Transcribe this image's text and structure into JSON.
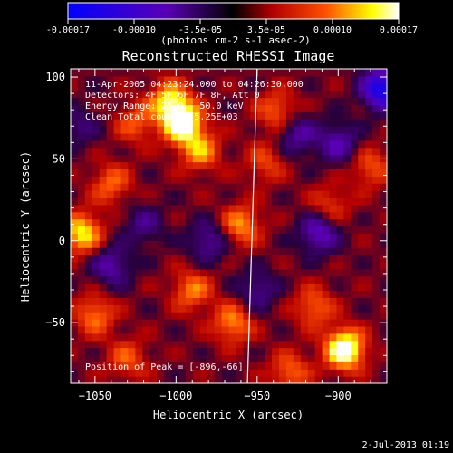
{
  "colorbar": {
    "colors": [
      "#0000ff",
      "#5a00b4",
      "#000000",
      "#b40000",
      "#ff5000",
      "#ffff00",
      "#ffffff"
    ],
    "tick_labels": [
      "-0.00017",
      "-0.00010",
      "-3.5e-05",
      "3.5e-05",
      "0.00010",
      "0.00017"
    ],
    "unit_label": "(photons cm-2 s-1 asec-2)"
  },
  "chart_data": {
    "type": "heatmap",
    "title": "Reconstructed RHESSI Image",
    "xlabel": "Heliocentric X (arcsec)",
    "ylabel": "Heliocentric Y (arcsec)",
    "xlim": [
      -1065,
      -870
    ],
    "ylim": [
      -87,
      105
    ],
    "x_ticks": [
      -1050,
      -1000,
      -950,
      -900
    ],
    "x_tick_labels": [
      "−1050",
      "−1000",
      "−950",
      "−900"
    ],
    "y_ticks": [
      100,
      50,
      0,
      -50
    ],
    "y_tick_labels": [
      "100",
      "50",
      "0",
      "−50"
    ],
    "colorbar_range": [
      -0.00017,
      0.00017
    ],
    "limb_line": [
      [
        -956,
        -87
      ],
      [
        -950,
        105
      ]
    ],
    "peak_position": [
      -896,
      -66
    ],
    "blobs": [
      {
        "x": -996,
        "y": 72,
        "v": 1.0
      },
      {
        "x": -1004,
        "y": 86,
        "v": 0.7
      },
      {
        "x": -985,
        "y": 55,
        "v": 0.55
      },
      {
        "x": -1058,
        "y": 5,
        "v": 0.75
      },
      {
        "x": -1040,
        "y": 35,
        "v": 0.45
      },
      {
        "x": -1050,
        "y": -45,
        "v": 0.5
      },
      {
        "x": -990,
        "y": -30,
        "v": 0.5
      },
      {
        "x": -960,
        "y": 10,
        "v": 0.55
      },
      {
        "x": -945,
        "y": 48,
        "v": 0.35
      },
      {
        "x": -965,
        "y": -50,
        "v": 0.55
      },
      {
        "x": -938,
        "y": 80,
        "v": 0.45
      },
      {
        "x": -896,
        "y": -66,
        "v": 1.05
      },
      {
        "x": -915,
        "y": -40,
        "v": 0.45
      },
      {
        "x": -880,
        "y": 45,
        "v": 0.4
      },
      {
        "x": -905,
        "y": 22,
        "v": 0.35
      },
      {
        "x": -1025,
        "y": 72,
        "v": 0.4
      },
      {
        "x": -1030,
        "y": -72,
        "v": 0.4
      },
      {
        "x": -930,
        "y": -80,
        "v": 0.45
      },
      {
        "x": -912,
        "y": 5,
        "v": -0.6
      },
      {
        "x": -980,
        "y": 0,
        "v": -0.45
      },
      {
        "x": -1040,
        "y": -15,
        "v": -0.5
      },
      {
        "x": -925,
        "y": 65,
        "v": -0.45
      },
      {
        "x": -873,
        "y": 93,
        "v": -1.0
      },
      {
        "x": -1020,
        "y": 10,
        "v": -0.35
      },
      {
        "x": -900,
        "y": 60,
        "v": -0.5
      },
      {
        "x": -1060,
        "y": 70,
        "v": -0.3
      },
      {
        "x": -950,
        "y": -30,
        "v": -0.4
      }
    ]
  },
  "annotations": {
    "time_range": "11-Apr-2005 04:23:24.000 to 04:26:30.000",
    "detectors": "Detectors: 4F 5F 6F 7F 8F, Att 0",
    "energy": "Energy Range: 25.0 - 50.0 keV",
    "clean": "Clean    Total counts: 5.25E+03",
    "peak": "Position of Peak = [-896,-66]"
  },
  "footer_date": "2-Jul-2013 01:19"
}
